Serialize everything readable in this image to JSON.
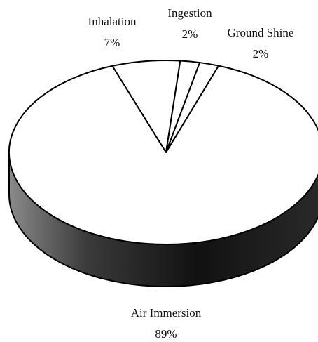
{
  "chart_data": {
    "type": "pie",
    "categories": [
      "Inhalation",
      "Ingestion",
      "Ground Shine",
      "Air Immersion"
    ],
    "values": [
      7,
      2,
      2,
      89
    ],
    "value_labels": [
      "7%",
      "2%",
      "2%",
      "89%"
    ],
    "color": "#ffffff"
  }
}
